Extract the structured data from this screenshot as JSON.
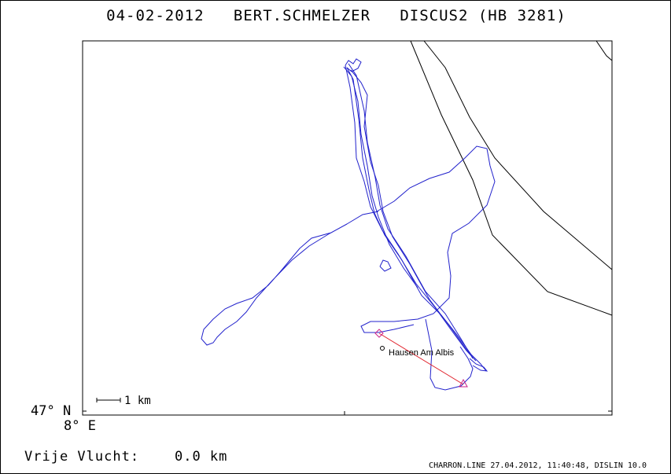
{
  "header": {
    "title": "04-02-2012   BERT.SCHMELZER   DISCUS2 (HB 3281)"
  },
  "map": {
    "lat_label": "47° N",
    "lon_label": "8° E",
    "scale_label": "1 km",
    "place_label": "Hausen Am Albis",
    "colors": {
      "track": "#2222cc",
      "task_line": "#e0202a",
      "turnpoint": "#cc2288",
      "boundary": "#000000"
    }
  },
  "footer": {
    "distance_text": "Vrije Vlucht:    0.0 km",
    "credit": "CHARRON.LINE 27.04.2012, 11:40:48, DISLIN 10.0"
  }
}
